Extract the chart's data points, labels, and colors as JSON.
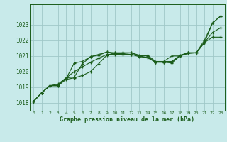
{
  "title": "Graphe pression niveau de la mer (hPa)",
  "background_color": "#c8eaea",
  "grid_color": "#a0c8c8",
  "line_color": "#1a5c1a",
  "xlim": [
    -0.5,
    23.5
  ],
  "ylim": [
    1017.5,
    1024.3
  ],
  "xticks": [
    0,
    1,
    2,
    3,
    4,
    5,
    6,
    7,
    8,
    9,
    10,
    11,
    12,
    13,
    14,
    15,
    16,
    17,
    18,
    19,
    20,
    21,
    22,
    23
  ],
  "yticks": [
    1018,
    1019,
    1020,
    1021,
    1022,
    1023
  ],
  "series": [
    [
      1018.1,
      1018.65,
      1019.1,
      1019.1,
      1019.5,
      1019.6,
      1019.75,
      1020.0,
      1020.5,
      1021.05,
      1021.2,
      1021.2,
      1021.2,
      1021.05,
      1021.0,
      1020.6,
      1020.65,
      1020.65,
      1021.05,
      1021.2,
      1021.2,
      1021.85,
      1023.1,
      1023.55
    ],
    [
      1018.1,
      1018.65,
      1019.1,
      1019.1,
      1019.55,
      1020.55,
      1020.65,
      1020.95,
      1021.1,
      1021.25,
      1021.2,
      1021.2,
      1021.2,
      1021.0,
      1021.05,
      1020.65,
      1020.65,
      1021.0,
      1021.0,
      1021.2,
      1021.2,
      1021.85,
      1022.2,
      1022.2
    ],
    [
      1018.1,
      1018.65,
      1019.1,
      1019.15,
      1019.6,
      1019.65,
      1020.5,
      1020.95,
      1021.05,
      1021.25,
      1021.15,
      1021.15,
      1021.1,
      1020.95,
      1020.9,
      1020.6,
      1020.6,
      1020.55,
      1021.0,
      1021.2,
      1021.2,
      1022.0,
      1023.1,
      1023.55
    ],
    [
      1018.1,
      1018.65,
      1019.1,
      1019.2,
      1019.6,
      1020.0,
      1020.3,
      1020.6,
      1020.85,
      1021.1,
      1021.1,
      1021.1,
      1021.1,
      1021.0,
      1020.9,
      1020.6,
      1020.6,
      1020.6,
      1021.0,
      1021.15,
      1021.2,
      1021.85,
      1022.5,
      1022.8
    ]
  ]
}
